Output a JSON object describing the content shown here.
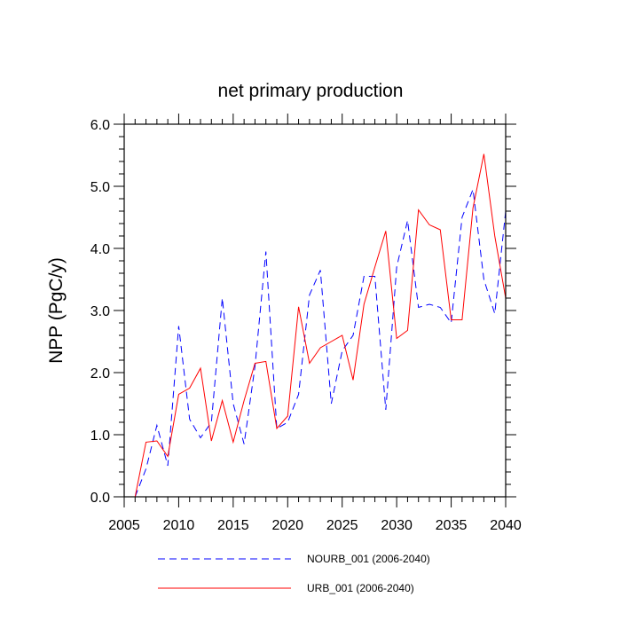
{
  "chart_data": {
    "type": "line",
    "title": "net primary production",
    "xlabel": "",
    "ylabel": "NPP  (PgC/y)",
    "xlim": [
      2005,
      2040
    ],
    "ylim": [
      0.0,
      6.0
    ],
    "x_ticks": [
      2005,
      2010,
      2015,
      2020,
      2025,
      2030,
      2035,
      2040
    ],
    "x_tick_labels": [
      "2005",
      "2010",
      "2015",
      "2020",
      "2025",
      "2030",
      "2035",
      "2040"
    ],
    "y_ticks": [
      0.0,
      1.0,
      2.0,
      3.0,
      4.0,
      5.0,
      6.0
    ],
    "y_tick_labels": [
      "0.0",
      "1.0",
      "2.0",
      "3.0",
      "4.0",
      "5.0",
      "6.0"
    ],
    "grid": false,
    "legend_position": "bottom",
    "x": [
      2006,
      2007,
      2008,
      2009,
      2010,
      2011,
      2012,
      2013,
      2014,
      2015,
      2016,
      2017,
      2018,
      2019,
      2020,
      2021,
      2022,
      2023,
      2024,
      2025,
      2026,
      2027,
      2028,
      2029,
      2030,
      2031,
      2032,
      2033,
      2034,
      2035,
      2036,
      2037,
      2038,
      2039,
      2040
    ],
    "series": [
      {
        "name": "NOURB_001 (2006-2040)",
        "style": "dashed",
        "color": "#0000ff",
        "values": [
          0.0,
          0.45,
          1.15,
          0.5,
          2.75,
          1.25,
          0.95,
          1.2,
          3.2,
          1.5,
          0.85,
          2.1,
          3.95,
          1.1,
          1.2,
          1.65,
          3.25,
          3.65,
          1.5,
          2.35,
          2.6,
          3.55,
          3.55,
          1.4,
          3.7,
          4.45,
          3.05,
          3.1,
          3.05,
          2.8,
          4.5,
          4.95,
          3.5,
          2.95,
          4.6
        ]
      },
      {
        "name": "URB_001 (2006-2040)",
        "style": "solid",
        "color": "#ff0000",
        "values": [
          0.0,
          0.88,
          0.9,
          0.65,
          1.65,
          1.75,
          2.07,
          0.9,
          1.55,
          0.88,
          1.55,
          2.15,
          2.18,
          1.1,
          1.3,
          3.06,
          2.15,
          2.4,
          2.5,
          2.6,
          1.88,
          3.1,
          3.7,
          4.28,
          2.55,
          2.68,
          4.62,
          4.38,
          4.3,
          2.85,
          2.85,
          4.65,
          5.52,
          4.2,
          3.2
        ]
      }
    ]
  }
}
